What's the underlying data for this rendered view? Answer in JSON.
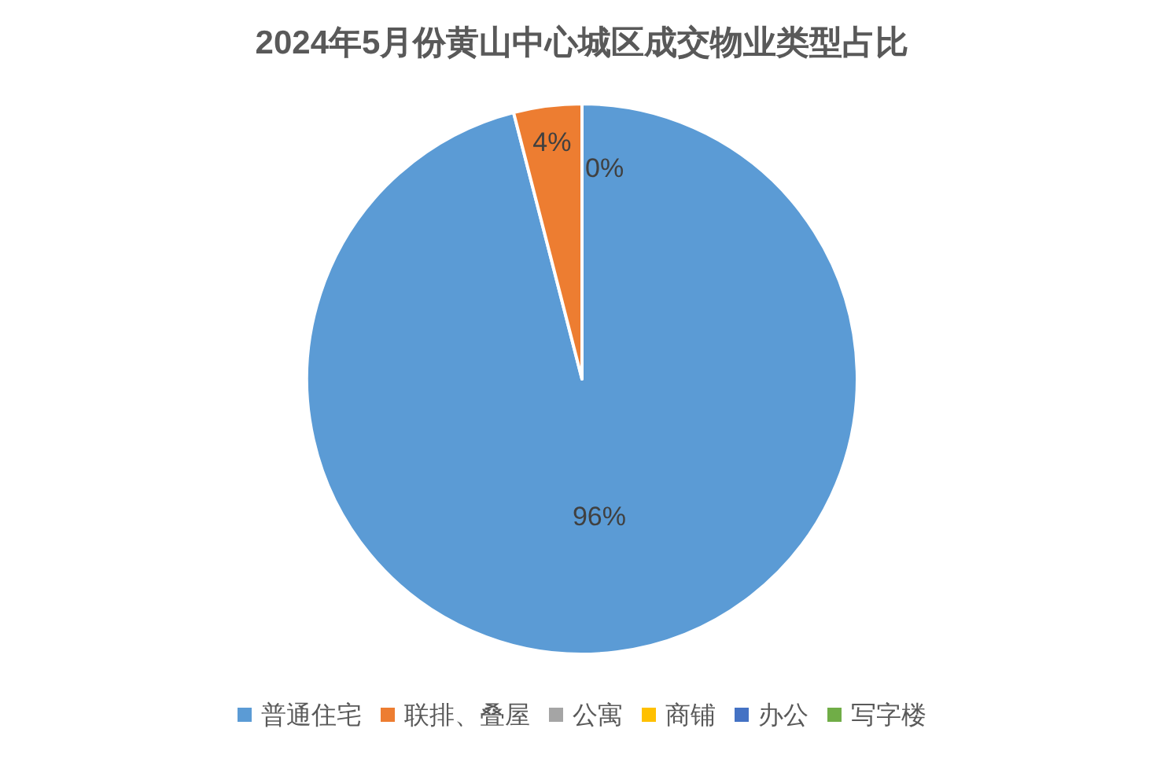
{
  "chart_data": {
    "type": "pie",
    "title": "2024年5月份黄山中心城区成交物业类型占比",
    "categories": [
      "普通住宅",
      "联排、叠屋",
      "公寓",
      "商铺",
      "办公",
      "写字楼"
    ],
    "values": [
      96,
      4,
      0,
      0,
      0,
      0
    ],
    "colors": [
      "#5b9bd5",
      "#ed7d31",
      "#a5a5a5",
      "#ffc000",
      "#4472c4",
      "#70ad47"
    ],
    "value_labels": [
      "96%",
      "4%",
      "0%",
      null,
      null,
      null
    ],
    "legend": "bottom"
  }
}
